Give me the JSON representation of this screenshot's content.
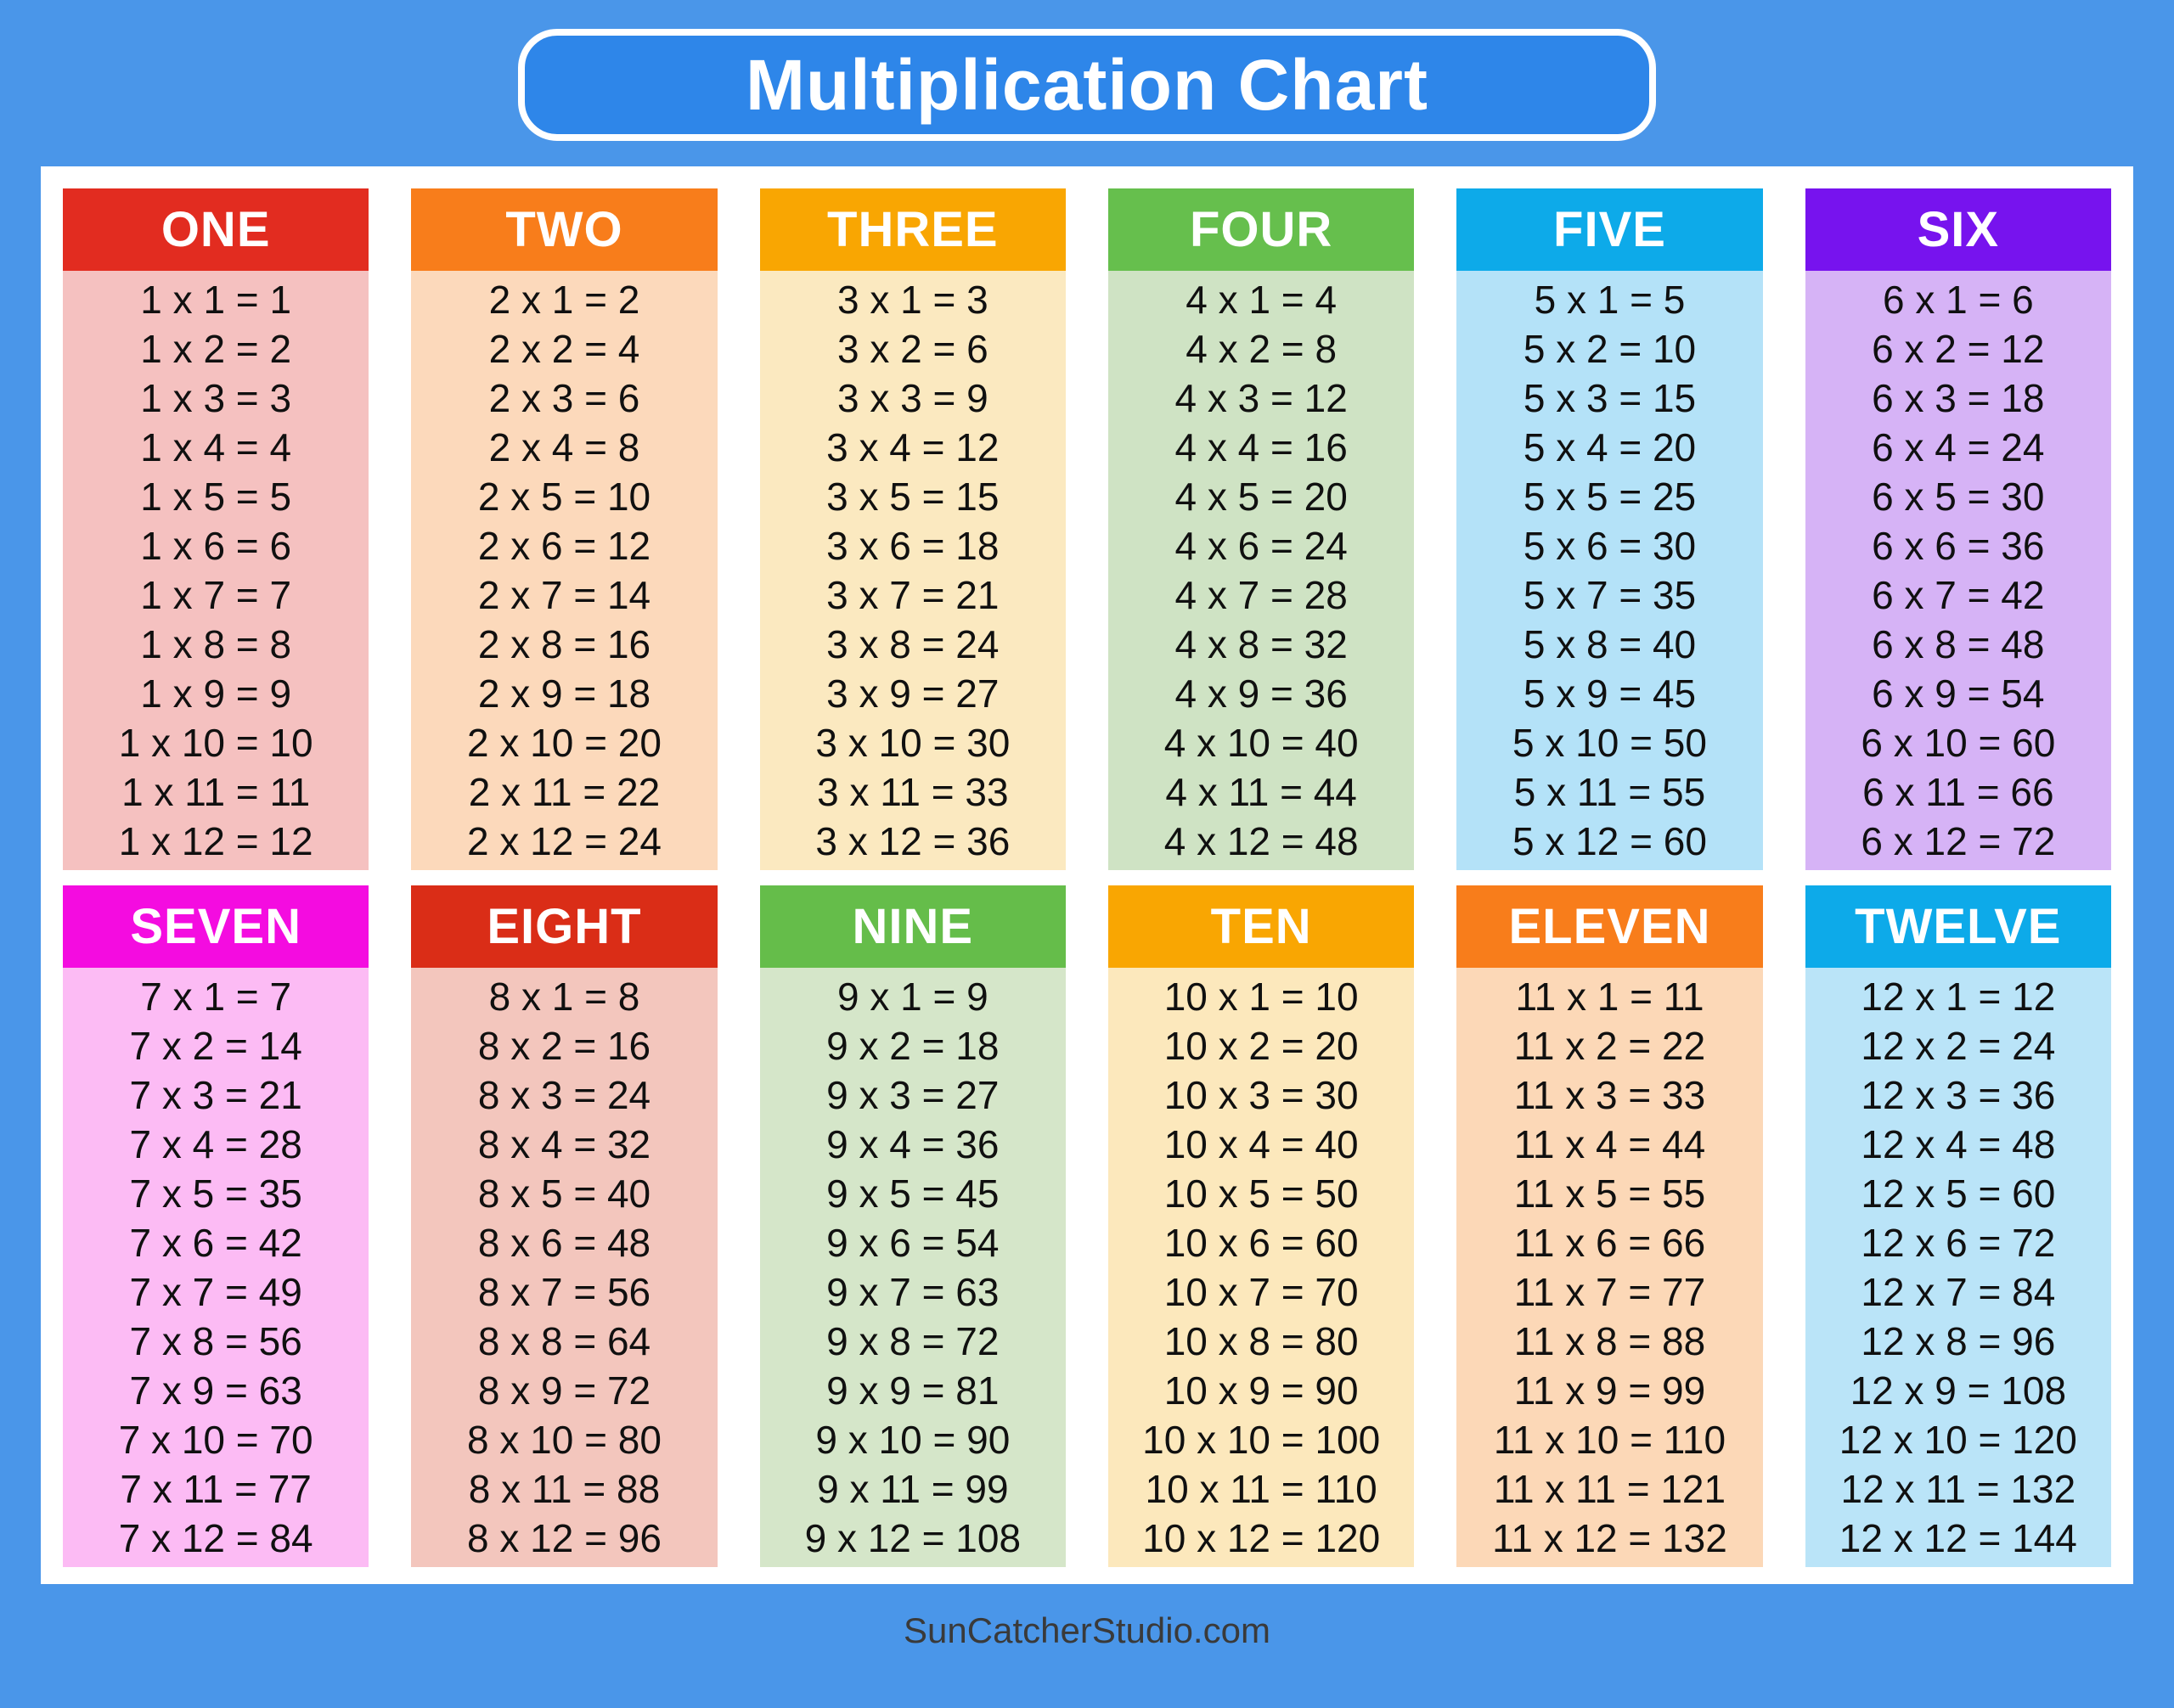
{
  "page": {
    "background": "#4a96e9"
  },
  "title": {
    "text": "Multiplication Chart",
    "bg": "#2e86e9",
    "border_color": "#ffffff",
    "text_color": "#ffffff"
  },
  "footer": {
    "text": "SunCatcherStudio.com",
    "text_color": "#3a3a3a"
  },
  "tables": [
    {
      "name": "ONE",
      "header_bg": "#e22c20",
      "body_bg": "#f5c1c0",
      "rows": [
        "1 x 1 = 1",
        "1 x 2 = 2",
        "1 x 3 = 3",
        "1 x 4 = 4",
        "1 x 5 = 5",
        "1 x 6 = 6",
        "1 x 7 = 7",
        "1 x 8 = 8",
        "1 x 9 = 9",
        "1 x 10 = 10",
        "1 x 11 = 11",
        "1 x 12 = 12"
      ]
    },
    {
      "name": "TWO",
      "header_bg": "#f87d1b",
      "body_bg": "#fcd9bb",
      "rows": [
        "2 x 1 = 2",
        "2 x 2 = 4",
        "2 x 3 = 6",
        "2 x 4 = 8",
        "2 x 5 = 10",
        "2 x 6 = 12",
        "2 x 7 = 14",
        "2 x 8 = 16",
        "2 x 9 = 18",
        "2 x 10 = 20",
        "2 x 11 = 22",
        "2 x 12 = 24"
      ]
    },
    {
      "name": "THREE",
      "header_bg": "#f9a602",
      "body_bg": "#fbe9c0",
      "rows": [
        "3 x 1 = 3",
        "3 x 2 = 6",
        "3 x 3 = 9",
        "3 x 4 = 12",
        "3 x 5 = 15",
        "3 x 6 = 18",
        "3 x 7 = 21",
        "3 x 8 = 24",
        "3 x 9 = 27",
        "3 x 10 = 30",
        "3 x 11 = 33",
        "3 x 12 = 36"
      ]
    },
    {
      "name": "FOUR",
      "header_bg": "#66bf4d",
      "body_bg": "#cfe3c4",
      "rows": [
        "4 x 1 = 4",
        "4 x 2 = 8",
        "4 x 3 = 12",
        "4 x 4 = 16",
        "4 x 5 = 20",
        "4 x 6 = 24",
        "4 x 7 = 28",
        "4 x 8 = 32",
        "4 x 9 = 36",
        "4 x 10 = 40",
        "4 x 11 = 44",
        "4 x 12 = 48"
      ]
    },
    {
      "name": "FIVE",
      "header_bg": "#0daae9",
      "body_bg": "#b4e2f8",
      "rows": [
        "5 x 1 = 5",
        "5 x 2 = 10",
        "5 x 3 = 15",
        "5 x 4 = 20",
        "5 x 5 = 25",
        "5 x 6 = 30",
        "5 x 7 = 35",
        "5 x 8 = 40",
        "5 x 9 = 45",
        "5 x 10 = 50",
        "5 x 11 = 55",
        "5 x 12 = 60"
      ]
    },
    {
      "name": "SIX",
      "header_bg": "#7713ee",
      "body_bg": "#d6b3f6",
      "rows": [
        "6 x 1 = 6",
        "6 x 2 = 12",
        "6 x 3 = 18",
        "6 x 4 = 24",
        "6 x 5 = 30",
        "6 x 6 = 36",
        "6 x 7 = 42",
        "6 x 8 = 48",
        "6 x 9 = 54",
        "6 x 10 = 60",
        "6 x 11 = 66",
        "6 x 12 = 72"
      ]
    },
    {
      "name": "SEVEN",
      "header_bg": "#f40ce0",
      "body_bg": "#fcbbf4",
      "rows": [
        "7 x 1 = 7",
        "7 x 2 = 14",
        "7 x 3 = 21",
        "7 x 4 = 28",
        "7 x 5 = 35",
        "7 x 6 = 42",
        "7 x 7 = 49",
        "7 x 8 = 56",
        "7 x 9 = 63",
        "7 x 10 = 70",
        "7 x 11 = 77",
        "7 x 12 = 84"
      ]
    },
    {
      "name": "EIGHT",
      "header_bg": "#da2d17",
      "body_bg": "#f3c6bd",
      "rows": [
        "8 x 1 = 8",
        "8 x 2 = 16",
        "8 x 3 = 24",
        "8 x 4 = 32",
        "8 x 5 = 40",
        "8 x 6 = 48",
        "8 x 7 = 56",
        "8 x 8 = 64",
        "8 x 9 = 72",
        "8 x 10 = 80",
        "8 x 11 = 88",
        "8 x 12 = 96"
      ]
    },
    {
      "name": "NINE",
      "header_bg": "#65bd4a",
      "body_bg": "#d5e6c9",
      "rows": [
        "9 x 1 = 9",
        "9 x 2 = 18",
        "9 x 3 = 27",
        "9 x 4 = 36",
        "9 x 5 = 45",
        "9 x 6 = 54",
        "9 x 7 = 63",
        "9 x 8 = 72",
        "9 x 9 = 81",
        "9 x 10 = 90",
        "9 x 11 = 99",
        "9 x 12 = 108"
      ]
    },
    {
      "name": "TEN",
      "header_bg": "#f9a602",
      "body_bg": "#fce8bc",
      "rows": [
        "10 x 1 = 10",
        "10 x 2 = 20",
        "10 x 3 = 30",
        "10 x 4 = 40",
        "10 x 5 = 50",
        "10 x 6 = 60",
        "10 x 7 = 70",
        "10 x 8 = 80",
        "10 x 9 = 90",
        "10 x 10 = 100",
        "10 x 11 = 110",
        "10 x 12 = 120"
      ]
    },
    {
      "name": "ELEVEN",
      "header_bg": "#f87d1b",
      "body_bg": "#fcd8b7",
      "rows": [
        "11 x 1 = 11",
        "11 x 2 = 22",
        "11 x 3 = 33",
        "11 x 4 = 44",
        "11 x 5 = 55",
        "11 x 6 = 66",
        "11 x 7 = 77",
        "11 x 8 = 88",
        "11 x 9 = 99",
        "11 x 10 = 110",
        "11 x 11 = 121",
        "11 x 12 = 132"
      ]
    },
    {
      "name": "TWELVE",
      "header_bg": "#0daae9",
      "body_bg": "#bae4f8",
      "rows": [
        "12 x 1 = 12",
        "12 x 2 = 24",
        "12 x 3 = 36",
        "12 x 4 = 48",
        "12 x 5 = 60",
        "12 x 6 = 72",
        "12 x 7 = 84",
        "12 x 8 = 96",
        "12 x 9 = 108",
        "12 x 10 = 120",
        "12 x 11 = 132",
        "12 x 12 = 144"
      ]
    }
  ]
}
